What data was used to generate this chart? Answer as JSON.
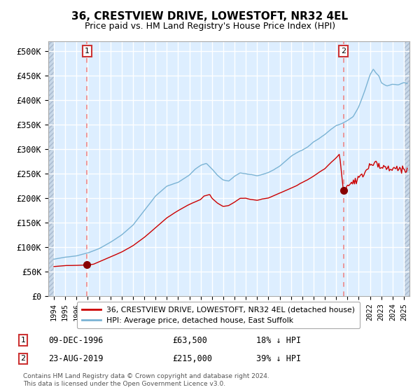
{
  "title": "36, CRESTVIEW DRIVE, LOWESTOFT, NR32 4EL",
  "subtitle": "Price paid vs. HM Land Registry's House Price Index (HPI)",
  "legend_entry1": "36, CRESTVIEW DRIVE, LOWESTOFT, NR32 4EL (detached house)",
  "legend_entry2": "HPI: Average price, detached house, East Suffolk",
  "annotation1_label": "1",
  "annotation1_date": "09-DEC-1996",
  "annotation1_price": "£63,500",
  "annotation1_hpi": "18% ↓ HPI",
  "annotation2_label": "2",
  "annotation2_date": "23-AUG-2019",
  "annotation2_price": "£215,000",
  "annotation2_hpi": "39% ↓ HPI",
  "footnote": "Contains HM Land Registry data © Crown copyright and database right 2024.\nThis data is licensed under the Open Government Licence v3.0.",
  "marker1_x": 1996.93,
  "marker1_y": 63500,
  "marker2_x": 2019.64,
  "marker2_y": 215000,
  "vline1_x": 1996.93,
  "vline2_x": 2019.64,
  "hpi_color": "#7ab3d4",
  "price_color": "#cc0000",
  "marker_color": "#880000",
  "vline_color": "#ee8888",
  "bg_color": "#ddeeff",
  "hatch_bg_color": "#c8d8e8",
  "grid_color": "#ffffff",
  "ylim": [
    0,
    520000
  ],
  "xlim_start": 1993.5,
  "xlim_end": 2025.5,
  "hatch_left_end": 1994.0,
  "hatch_right_start": 2025.08
}
